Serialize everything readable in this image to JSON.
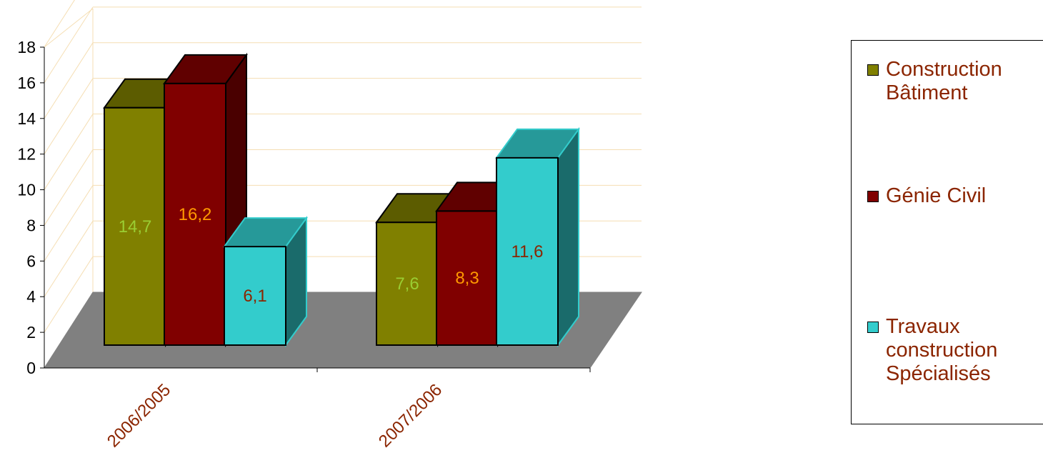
{
  "chart_data": {
    "type": "bar",
    "categories": [
      "2006/2005",
      "2007/2006"
    ],
    "series": [
      {
        "name": "Construction Bâtiment",
        "values": [
          14.7,
          7.6
        ],
        "labels": [
          "14,7",
          "7,6"
        ],
        "color": "#808000",
        "top_color": "#5c5c00",
        "side_color": "#4a4a00",
        "label_color": "#9acd32"
      },
      {
        "name": "Génie Civil",
        "values": [
          16.2,
          8.3
        ],
        "labels": [
          "16,2",
          "8,3"
        ],
        "color": "#800000",
        "top_color": "#600000",
        "side_color": "#4a0000",
        "label_color": "#ff9900"
      },
      {
        "name": "Travaux construction Spécialisés",
        "values": [
          6.1,
          11.6
        ],
        "labels": [
          "6,1",
          "11,6"
        ],
        "color": "#33cccc",
        "top_color": "#269999",
        "side_color": "#1a6b6b",
        "label_color": "#8b2500"
      }
    ],
    "yticks": [
      "0",
      "2",
      "4",
      "6",
      "8",
      "10",
      "12",
      "14",
      "16",
      "18"
    ],
    "ylim": [
      0,
      18
    ],
    "grid": true,
    "legend_position": "right",
    "floor_color": "#808080"
  },
  "legend": {
    "items": [
      {
        "label": "Construction\nBâtiment",
        "color": "#808000"
      },
      {
        "label": "Génie Civil",
        "color": "#800000"
      },
      {
        "label": "Travaux\nconstruction\nSpécialisés",
        "color": "#33cccc"
      }
    ]
  }
}
